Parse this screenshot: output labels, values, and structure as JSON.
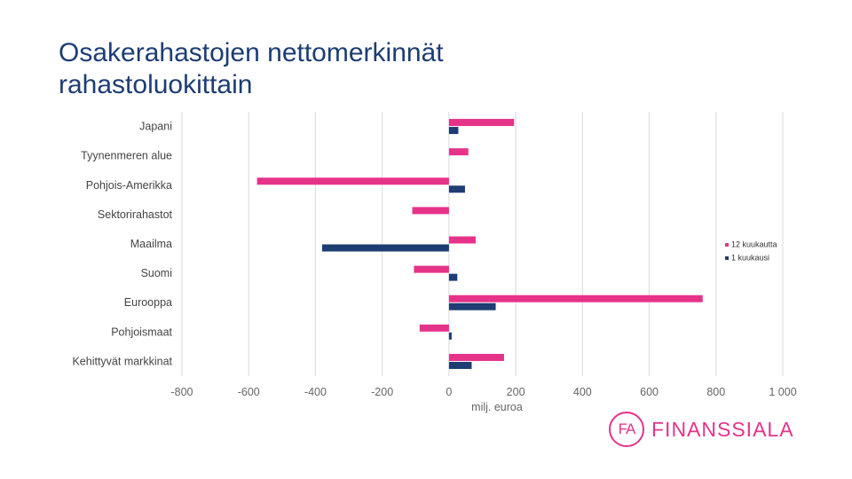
{
  "title": {
    "line1": "Osakerahastojen nettomerkinnät",
    "line2": "rahastoluokittain"
  },
  "colors": {
    "series_12m": "#e6338a",
    "series_1m": "#1d3d73",
    "title": "#1d3d73",
    "grid": "#d9d9d9",
    "brand": "#e6338a"
  },
  "chart_data": {
    "type": "bar",
    "orientation": "horizontal",
    "title": "",
    "xlabel": "milj. euroa",
    "ylabel": "",
    "xlim": [
      -800,
      1000
    ],
    "x_ticks": [
      -800,
      -600,
      -400,
      -200,
      0,
      200,
      400,
      600,
      800,
      1000
    ],
    "x_tick_labels": [
      "-800",
      "-600",
      "-400",
      "-200",
      "0",
      "200",
      "400",
      "600",
      "800",
      "1 000"
    ],
    "grid": true,
    "legend_position": "right",
    "categories": [
      "Japani",
      "Tyynenmeren alue",
      "Pohjois-Amerikka",
      "Sektorirahastot",
      "Maailma",
      "Suomi",
      "Eurooppa",
      "Pohjoismaat",
      "Kehittyvät markkinat"
    ],
    "series": [
      {
        "name": "12 kuukautta",
        "color": "#e6338a",
        "values": [
          195,
          58,
          -575,
          -110,
          80,
          -105,
          760,
          -88,
          165
        ]
      },
      {
        "name": "1 kuukausi",
        "color": "#1d3d73",
        "values": [
          28,
          0,
          48,
          0,
          -380,
          25,
          140,
          8,
          68
        ]
      }
    ]
  },
  "logo": {
    "mark": "FA",
    "name": "FINANSSIALA"
  }
}
